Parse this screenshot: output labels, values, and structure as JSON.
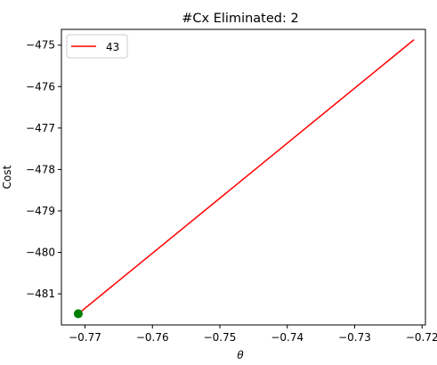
{
  "chart_data": {
    "type": "line",
    "title": "#Cx Eliminated: 2",
    "xlabel": "θ",
    "ylabel": "Cost",
    "xlim": [
      -0.7735,
      -0.7195
    ],
    "ylim": [
      -481.75,
      -474.62
    ],
    "xticks": [
      -0.77,
      -0.76,
      -0.75,
      -0.74,
      -0.73,
      -0.72
    ],
    "xtick_labels": [
      "−0.77",
      "−0.76",
      "−0.75",
      "−0.74",
      "−0.73",
      "−0.72"
    ],
    "yticks": [
      -481,
      -480,
      -479,
      -478,
      -477,
      -476,
      -475
    ],
    "ytick_labels": [
      "−481",
      "−480",
      "−479",
      "−478",
      "−477",
      "−476",
      "−475"
    ],
    "grid": false,
    "legend_position": "top-left",
    "series": [
      {
        "name": "43",
        "color": "#ff0000",
        "x": [
          -0.771,
          -0.7212
        ],
        "y": [
          -481.48,
          -474.87
        ]
      }
    ],
    "marker": {
      "x": -0.771,
      "y": -481.48,
      "color": "#008000",
      "shape": "circle"
    }
  }
}
